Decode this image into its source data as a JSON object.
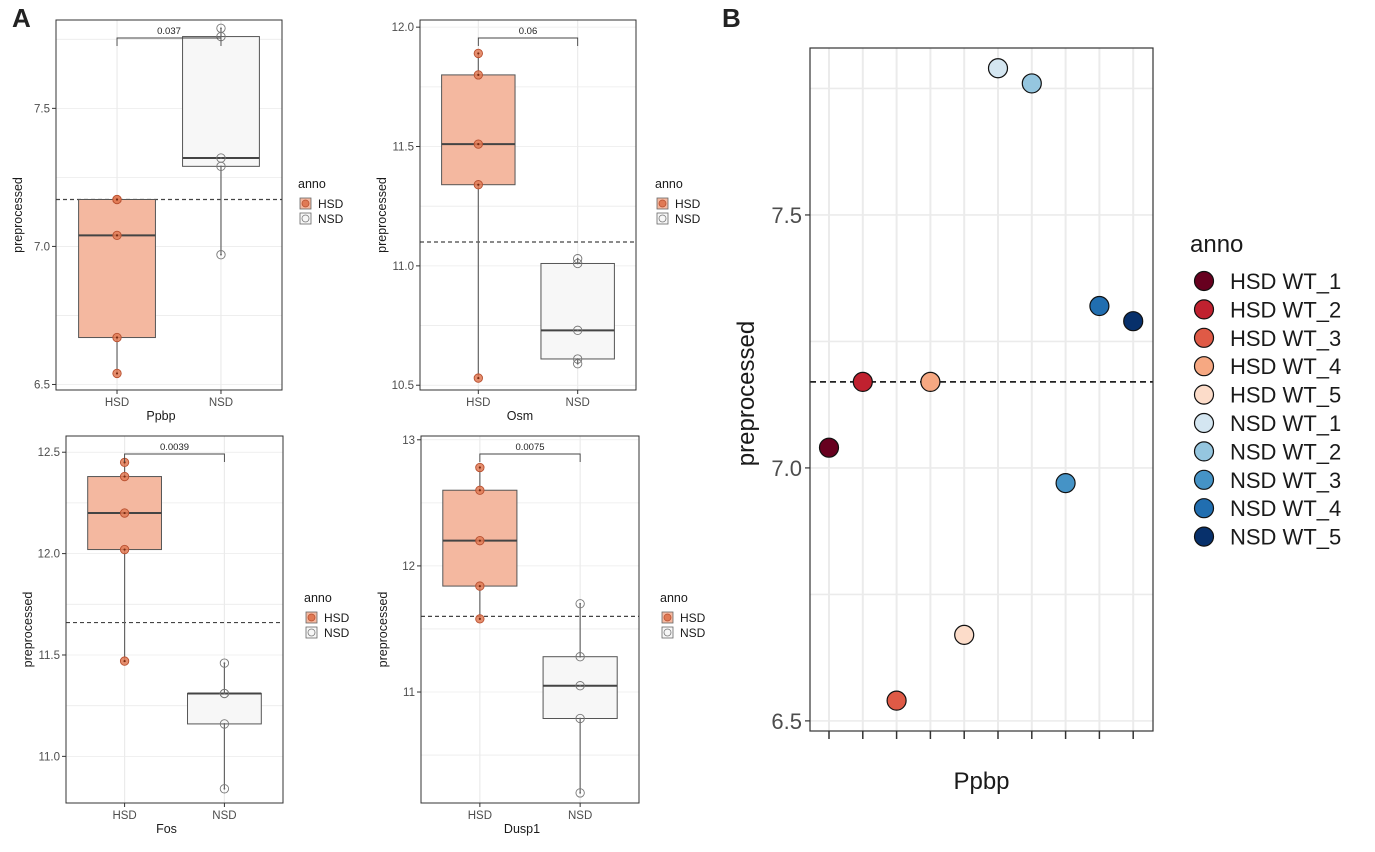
{
  "panel_labels": {
    "a": "A",
    "b": "B"
  },
  "colors": {
    "hsd_fill": "#f4b8a0",
    "hsd_point": "#e07a55",
    "nsd_fill": "#f7f7f7",
    "grid": "#ebebeb",
    "border": "#333333"
  },
  "chart_data": [
    {
      "type": "box",
      "panel": "A",
      "xlabel": "Ppbp",
      "ylabel": "preprocessed",
      "categories": [
        "HSD",
        "NSD"
      ],
      "ylim": [
        6.48,
        7.82
      ],
      "yticks": [
        6.5,
        7.0,
        7.5
      ],
      "yticklabels": [
        "6.5",
        "7.0",
        "7.5"
      ],
      "reference_line": 7.17,
      "pvalue": "0.037",
      "boxes": [
        {
          "group": "HSD",
          "min": 6.54,
          "q1": 6.67,
          "median": 7.04,
          "q3": 7.17,
          "max": 7.17
        },
        {
          "group": "NSD",
          "min": 6.97,
          "q1": 7.29,
          "median": 7.32,
          "q3": 7.76,
          "max": 7.79
        }
      ],
      "points": [
        {
          "group": "HSD",
          "values": [
            7.17,
            7.04,
            6.67,
            6.54,
            7.17
          ]
        },
        {
          "group": "NSD",
          "values": [
            7.79,
            7.76,
            7.32,
            7.29,
            6.97
          ]
        }
      ],
      "legend": {
        "title": "anno",
        "entries": [
          "HSD",
          "NSD"
        ],
        "position": "right"
      }
    },
    {
      "type": "box",
      "panel": "A",
      "xlabel": "Osm",
      "ylabel": "preprocessed",
      "categories": [
        "HSD",
        "NSD"
      ],
      "ylim": [
        10.48,
        12.03
      ],
      "yticks": [
        10.5,
        11.0,
        11.5,
        12.0
      ],
      "yticklabels": [
        "10.5",
        "11.0",
        "11.5",
        "12.0"
      ],
      "reference_line": 11.1,
      "pvalue": "0.06",
      "boxes": [
        {
          "group": "HSD",
          "min": 10.53,
          "q1": 11.34,
          "median": 11.51,
          "q3": 11.8,
          "max": 11.89
        },
        {
          "group": "NSD",
          "min": 10.59,
          "q1": 10.61,
          "median": 10.73,
          "q3": 11.01,
          "max": 11.03
        }
      ],
      "points": [
        {
          "group": "HSD",
          "values": [
            11.89,
            11.8,
            11.51,
            11.34,
            10.53
          ]
        },
        {
          "group": "NSD",
          "values": [
            11.03,
            11.01,
            10.73,
            10.61,
            10.59
          ]
        }
      ],
      "legend": {
        "title": "anno",
        "entries": [
          "HSD",
          "NSD"
        ],
        "position": "right"
      }
    },
    {
      "type": "box",
      "panel": "A",
      "xlabel": "Fos",
      "ylabel": "preprocessed",
      "categories": [
        "HSD",
        "NSD"
      ],
      "ylim": [
        10.77,
        12.58
      ],
      "yticks": [
        11.0,
        11.5,
        12.0,
        12.5
      ],
      "yticklabels": [
        "11.0",
        "11.5",
        "12.0",
        "12.5"
      ],
      "reference_line": 11.66,
      "pvalue": "0.0039",
      "boxes": [
        {
          "group": "HSD",
          "min": 11.47,
          "q1": 12.02,
          "median": 12.2,
          "q3": 12.38,
          "max": 12.45
        },
        {
          "group": "NSD",
          "min": 10.84,
          "q1": 11.16,
          "median": 11.31,
          "q3": 11.31,
          "max": 11.46
        }
      ],
      "points": [
        {
          "group": "HSD",
          "values": [
            12.45,
            12.38,
            12.2,
            12.02,
            11.47
          ]
        },
        {
          "group": "NSD",
          "values": [
            11.46,
            11.31,
            11.31,
            11.16,
            10.84
          ]
        }
      ],
      "legend": {
        "title": "anno",
        "entries": [
          "HSD",
          "NSD"
        ],
        "position": "right"
      }
    },
    {
      "type": "box",
      "panel": "A",
      "xlabel": "Dusp1",
      "ylabel": "preprocessed",
      "categories": [
        "HSD",
        "NSD"
      ],
      "ylim": [
        10.12,
        13.03
      ],
      "yticks": [
        11,
        12,
        13
      ],
      "yticklabels": [
        "11",
        "12",
        "13"
      ],
      "reference_line": 11.6,
      "pvalue": "0.0075",
      "boxes": [
        {
          "group": "HSD",
          "min": 11.58,
          "q1": 11.84,
          "median": 12.2,
          "q3": 12.6,
          "max": 12.78
        },
        {
          "group": "NSD",
          "min": 10.2,
          "q1": 10.79,
          "median": 11.05,
          "q3": 11.28,
          "max": 11.7
        }
      ],
      "points": [
        {
          "group": "HSD",
          "values": [
            12.78,
            12.6,
            12.2,
            11.84,
            11.58
          ]
        },
        {
          "group": "NSD",
          "values": [
            11.7,
            11.28,
            11.05,
            10.79,
            10.2
          ]
        }
      ],
      "legend": {
        "title": "anno",
        "entries": [
          "HSD",
          "NSD"
        ],
        "position": "right"
      }
    },
    {
      "type": "scatter",
      "panel": "B",
      "xlabel": "Ppbp",
      "ylabel": "preprocessed",
      "ylim": [
        6.48,
        7.83
      ],
      "yticks": [
        6.5,
        7.0,
        7.5
      ],
      "yticklabels": [
        "6.5",
        "7.0",
        "7.5"
      ],
      "reference_line": 7.17,
      "grid": true,
      "points": [
        {
          "name": "HSD WT_1",
          "y": 7.04,
          "color": "#67001f"
        },
        {
          "name": "HSD WT_2",
          "y": 7.17,
          "color": "#c0212f"
        },
        {
          "name": "HSD WT_3",
          "y": 6.54,
          "color": "#df5a46"
        },
        {
          "name": "HSD WT_4",
          "y": 7.17,
          "color": "#f6a882"
        },
        {
          "name": "HSD WT_5",
          "y": 6.67,
          "color": "#fcdcc9"
        },
        {
          "name": "NSD WT_1",
          "y": 7.79,
          "color": "#d4e6f1"
        },
        {
          "name": "NSD WT_2",
          "y": 7.76,
          "color": "#95c6df"
        },
        {
          "name": "NSD WT_3",
          "y": 6.97,
          "color": "#4593c6"
        },
        {
          "name": "NSD WT_4",
          "y": 7.32,
          "color": "#216eb0"
        },
        {
          "name": "NSD WT_5",
          "y": 7.29,
          "color": "#07306b"
        }
      ],
      "legend": {
        "title": "anno",
        "position": "right"
      }
    }
  ]
}
